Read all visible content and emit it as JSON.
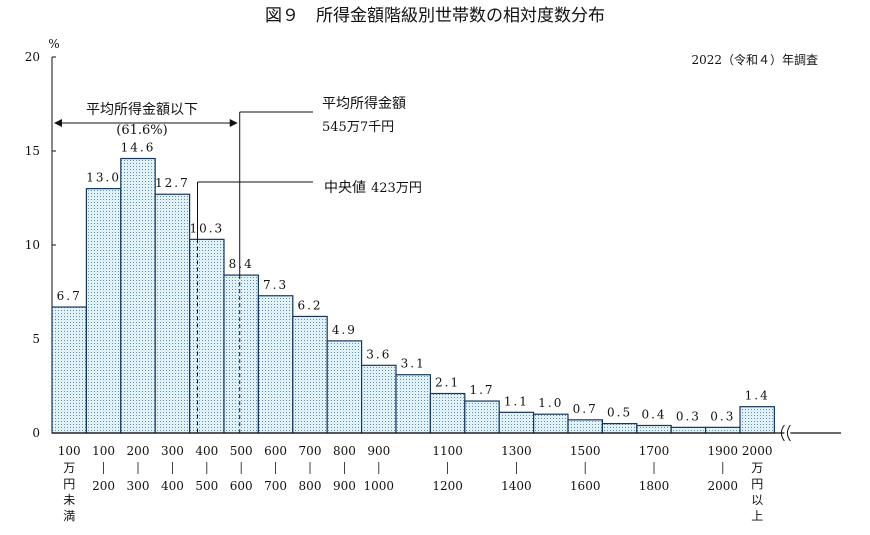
{
  "chart_data": {
    "type": "bar",
    "title": "図９　所得金額階級別世帯数の相対度数分布",
    "subtitle": "2022（令和４）年調査",
    "y_unit": "%",
    "ylim": [
      0,
      20
    ],
    "yticks": [
      0,
      5,
      10,
      15,
      20
    ],
    "categories": [
      "100万円未満",
      "100-200",
      "200-300",
      "300-400",
      "400-500",
      "500-600",
      "600-700",
      "700-800",
      "800-900",
      "900-1000",
      "1000-1100",
      "1100-1200",
      "1200-1300",
      "1300-1400",
      "1400-1500",
      "1500-1600",
      "1600-1700",
      "1700-1800",
      "1800-1900",
      "1900-2000",
      "2000万円以上"
    ],
    "values": [
      6.7,
      13.0,
      14.6,
      12.7,
      10.3,
      8.4,
      7.3,
      6.2,
      4.9,
      3.6,
      3.1,
      2.1,
      1.7,
      1.1,
      1.0,
      0.7,
      0.5,
      0.4,
      0.3,
      0.3,
      1.4
    ],
    "value_labels": [
      "6.7",
      "13.0",
      "14.6",
      "12.7",
      "10.3",
      "8.4",
      "7.3",
      "6.2",
      "4.9",
      "3.6",
      "3.1",
      "2.1",
      "1.7",
      "1.1",
      "1.0",
      "0.7",
      "0.5",
      "0.4",
      "0.3",
      "0.3",
      "1.4"
    ],
    "x_labels": [
      {
        "top": "100",
        "bottom": [
          "万",
          "円",
          "未",
          "満"
        ],
        "bar": 0
      },
      {
        "top": "100",
        "bottom": [
          "200"
        ],
        "bar": 1
      },
      {
        "top": "200",
        "bottom": [
          "300"
        ],
        "bar": 2
      },
      {
        "top": "300",
        "bottom": [
          "400"
        ],
        "bar": 3
      },
      {
        "top": "400",
        "bottom": [
          "500"
        ],
        "bar": 4
      },
      {
        "top": "500",
        "bottom": [
          "600"
        ],
        "bar": 5
      },
      {
        "top": "600",
        "bottom": [
          "700"
        ],
        "bar": 6
      },
      {
        "top": "700",
        "bottom": [
          "800"
        ],
        "bar": 7
      },
      {
        "top": "800",
        "bottom": [
          "900"
        ],
        "bar": 8
      },
      {
        "top": "900",
        "bottom": [
          "1000"
        ],
        "bar": 9
      },
      {
        "top": "1100",
        "bottom": [
          "1200"
        ],
        "bar": 11
      },
      {
        "top": "1300",
        "bottom": [
          "1400"
        ],
        "bar": 13
      },
      {
        "top": "1500",
        "bottom": [
          "1600"
        ],
        "bar": 15
      },
      {
        "top": "1700",
        "bottom": [
          "1800"
        ],
        "bar": 17
      },
      {
        "top": "1900",
        "bottom": [
          "2000"
        ],
        "bar": 19
      },
      {
        "top": "2000",
        "bottom": [
          "万",
          "円",
          "以",
          "上"
        ],
        "bar": 20
      }
    ],
    "annotations": {
      "below_mean_label": "平均所得金額以下",
      "below_mean_pct": "(61.6%)",
      "mean_label": "平均所得金額",
      "mean_value_text": "545万7千円",
      "mean_value": 545.7,
      "median_label": "中央値",
      "median_value_text": "423万円",
      "median_value": 423
    },
    "colors": {
      "bar_fill": "#e2f2f9",
      "bar_dots": "#5c8fb0",
      "bar_edge": "#17365d",
      "axis": "#111111"
    }
  }
}
